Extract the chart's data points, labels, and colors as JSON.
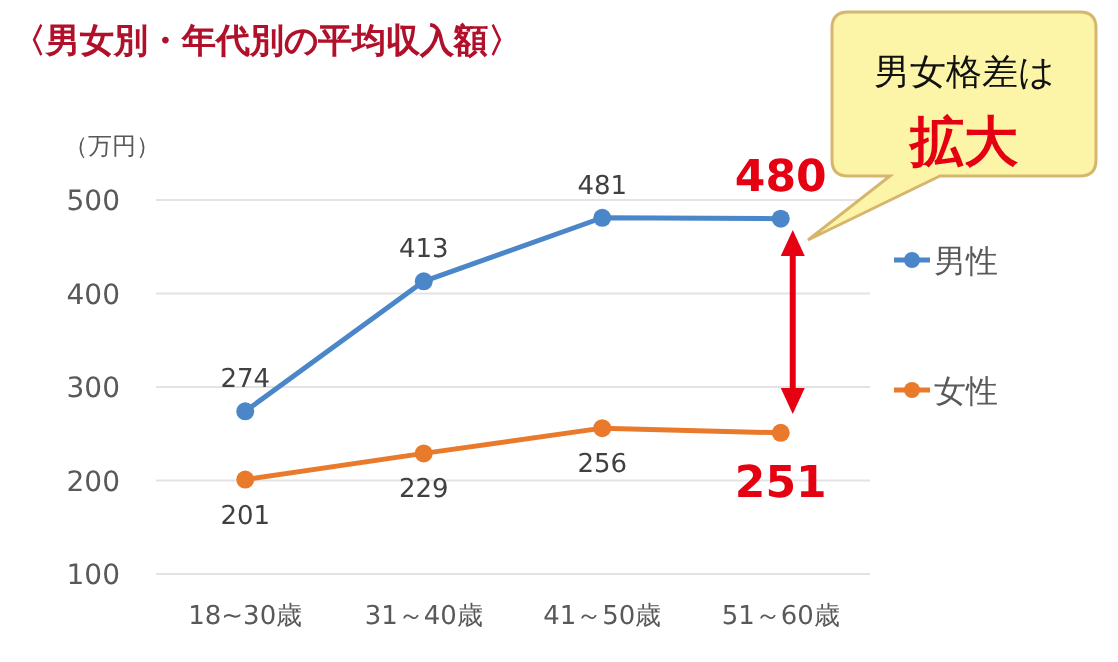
{
  "chart_data": {
    "type": "line",
    "title": "〈男女別・年代別の平均収入額〉",
    "ylabel": "（万円）",
    "categories": [
      "18~30歳",
      "31～40歳",
      "41～50歳",
      "51～60歳"
    ],
    "series": [
      {
        "name": "男性",
        "color": "#4a86c8",
        "values": [
          274,
          413,
          481,
          480
        ]
      },
      {
        "name": "女性",
        "color": "#e97a2b",
        "values": [
          201,
          229,
          256,
          251
        ]
      }
    ],
    "ylim": [
      100,
      500
    ],
    "yticks": [
      100,
      200,
      300,
      400,
      500
    ],
    "grid": "y",
    "legend": "right",
    "marker": "circle",
    "data_labels": true,
    "annotations": [
      "男女格差は",
      "拡大"
    ]
  }
}
